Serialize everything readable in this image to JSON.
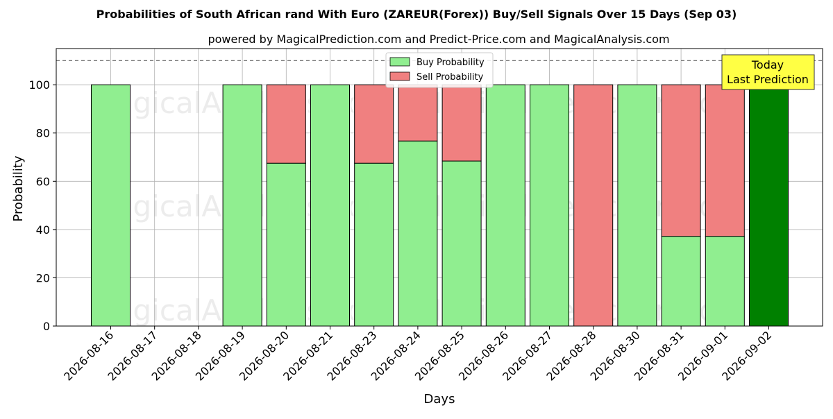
{
  "chart_data": {
    "type": "bar",
    "stacked": true,
    "title": "Probabilities of South African rand With Euro (ZAREUR(Forex)) Buy/Sell Signals Over 15 Days (Sep 03)",
    "subtitle": "powered by MagicalPrediction.com and Predict-Price.com and MagicalAnalysis.com",
    "xlabel": "Days",
    "ylabel": "Probability",
    "ylim": [
      0,
      115
    ],
    "yticks": [
      0,
      20,
      40,
      60,
      80,
      100
    ],
    "grid": true,
    "reference_line": 110,
    "legend_position": "top-center",
    "categories": [
      "2026-08-16",
      "2026-08-17",
      "2026-08-18",
      "2026-08-19",
      "2026-08-20",
      "2026-08-21",
      "2026-08-23",
      "2026-08-24",
      "2026-08-25",
      "2026-08-26",
      "2026-08-27",
      "2026-08-28",
      "2026-08-30",
      "2026-08-31",
      "2026-09-01",
      "2026-09-02"
    ],
    "series": [
      {
        "name": "Buy Probability",
        "color": "#90ee90",
        "values": [
          100,
          null,
          null,
          100,
          67.5,
          100,
          67.5,
          76.7,
          68.4,
          100,
          100,
          0,
          100,
          37.2,
          37.2,
          null
        ]
      },
      {
        "name": "Sell Probability",
        "color": "#f08080",
        "values": [
          0,
          null,
          null,
          0,
          32.5,
          0,
          32.5,
          23.3,
          31.6,
          0,
          0,
          100,
          0,
          62.8,
          62.8,
          null
        ]
      }
    ],
    "today_bar": {
      "category": "2026-09-02",
      "value": 100,
      "color": "#008000"
    },
    "annotation": {
      "line1": "Today",
      "line2": "Last Prediction",
      "background": "#ffff44"
    },
    "watermarks": [
      "MagicalAnalysis.com",
      "MagicalPrediction.com"
    ]
  }
}
